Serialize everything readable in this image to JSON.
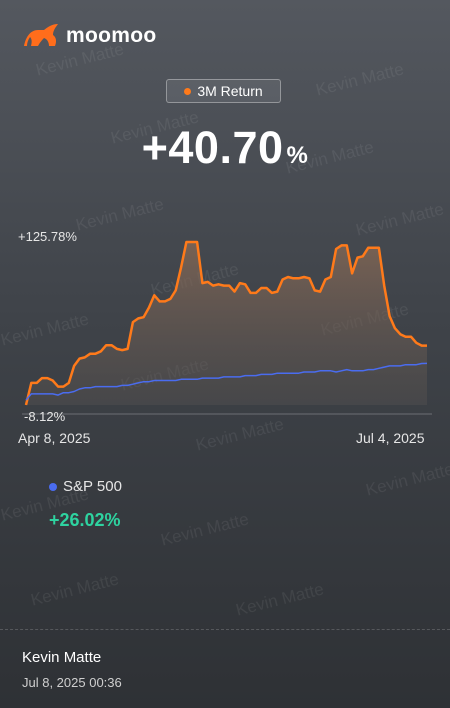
{
  "brand": {
    "name": "moomoo"
  },
  "period": {
    "label": "3M Return",
    "dot_color": "#ff7a1a"
  },
  "return": {
    "value": "+40.70",
    "unit": "%"
  },
  "chart": {
    "y_max_label": "+125.78%",
    "y_min_label": "-8.12%",
    "x_start_label": "Apr 8, 2025",
    "x_end_label": "Jul 4, 2025"
  },
  "chart_data": {
    "type": "line",
    "x_range": [
      "Apr 8, 2025",
      "Jul 4, 2025"
    ],
    "ylim": [
      -8.12,
      125.78
    ],
    "grid": false,
    "series": [
      {
        "name": "",
        "color": "#ff7a1a",
        "fill": true,
        "values": [
          -8.1,
          10,
          10,
          14,
          14,
          12,
          7,
          7,
          10,
          24,
          30,
          31,
          34,
          34,
          36,
          41,
          41,
          38,
          37,
          38,
          60,
          63,
          64,
          72,
          82,
          77,
          77,
          79,
          86,
          105,
          125.8,
          125.8,
          125.8,
          92,
          93,
          90,
          91,
          90,
          90,
          85,
          92,
          91,
          84,
          84,
          88,
          88,
          84,
          85,
          95,
          97,
          96,
          96,
          97,
          96,
          86,
          85,
          95,
          97,
          120,
          123,
          123,
          100,
          113,
          114,
          121,
          121,
          121,
          90,
          65,
          55,
          50,
          48,
          48,
          43,
          40.7,
          40.7
        ]
      },
      {
        "name": "S&P 500",
        "color": "#4a6cf0",
        "fill": false,
        "values": [
          -4,
          1,
          1,
          1,
          1,
          1,
          0,
          2,
          2,
          3,
          5,
          6,
          6,
          7,
          7,
          7,
          7,
          7,
          8,
          8,
          9,
          10,
          11,
          11,
          12,
          12,
          12,
          12,
          12,
          13,
          13,
          13,
          13,
          14,
          14,
          14,
          14,
          15,
          15,
          15,
          15,
          16,
          16,
          16,
          17,
          17,
          17,
          18,
          18,
          18,
          18,
          18,
          19,
          19,
          19,
          20,
          20,
          20,
          19,
          20,
          21,
          20,
          20,
          20,
          21,
          21,
          22,
          23,
          24,
          24,
          24,
          25,
          25,
          25,
          26,
          26.02
        ]
      }
    ]
  },
  "legend": {
    "benchmark_name": "S&P 500",
    "benchmark_return": "+26.02%",
    "benchmark_color": "#4a6cf0"
  },
  "footer": {
    "user_name": "Kevin Matte",
    "timestamp": "Jul 8, 2025 00:36"
  },
  "watermark": {
    "text": "Kevin Matte"
  }
}
